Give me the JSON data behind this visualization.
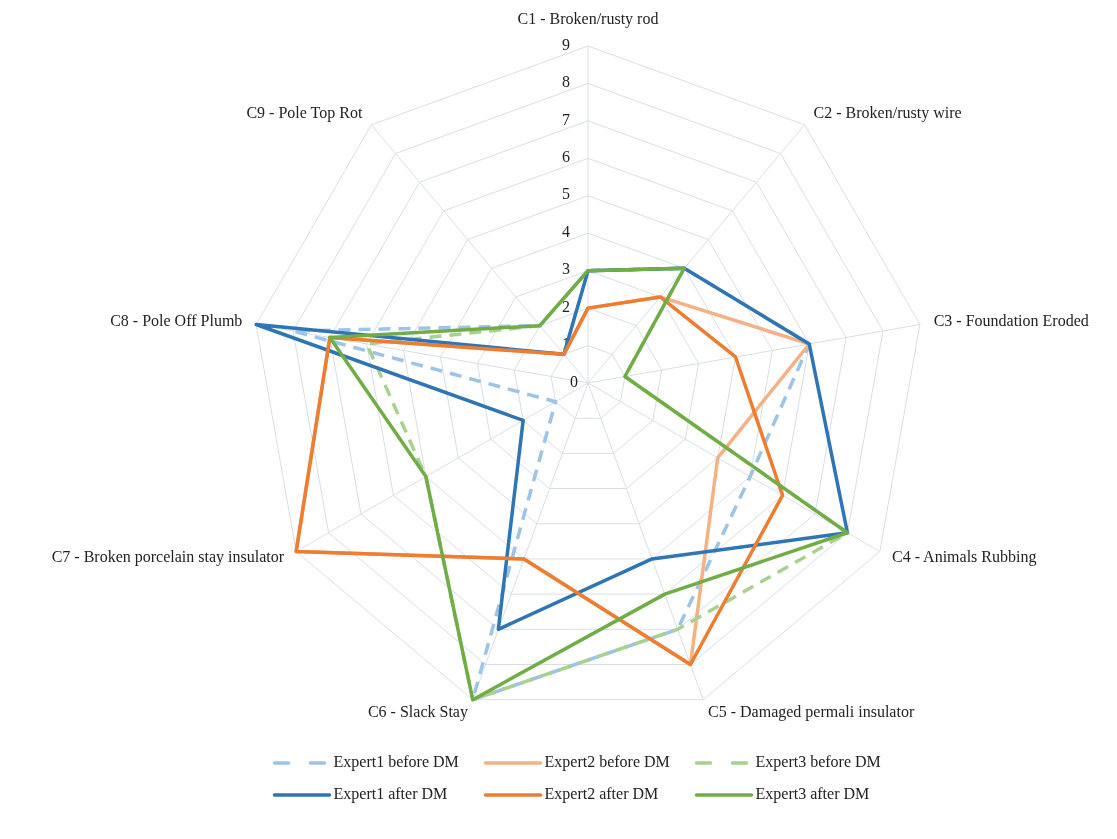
{
  "chart_data": {
    "type": "radar",
    "categories": [
      "C1 - Broken/rusty rod",
      "C2 - Broken/rusty wire",
      "C3 - Foundation Eroded",
      "C4 - Animals Rubbing",
      "C5 - Damaged permali insulator",
      "C6 - Slack Stay",
      "C7 - Broken porcelain stay insulator",
      "C8 - Pole Off Plumb",
      "C9 - Pole Top Rot"
    ],
    "series": [
      {
        "name": "Expert1 before DM",
        "color": "#9dc3e6",
        "line_style": "dashed",
        "values": [
          3,
          4,
          6,
          5,
          7,
          9,
          1,
          8,
          2
        ]
      },
      {
        "name": "Expert2 before DM",
        "color": "#f4b183",
        "line_style": "solid",
        "values": [
          2,
          3,
          6,
          4,
          8,
          5,
          9,
          7,
          1
        ]
      },
      {
        "name": "Expert3 before DM",
        "color": "#a9d18e",
        "line_style": "dashed",
        "values": [
          3,
          4,
          1,
          8,
          7,
          9,
          5,
          6,
          2
        ]
      },
      {
        "name": "Expert1 after DM",
        "color": "#2e75b6",
        "line_style": "solid",
        "values": [
          3,
          4,
          6,
          8,
          5,
          7,
          2,
          9,
          1
        ]
      },
      {
        "name": "Expert2 after DM",
        "color": "#ed7d31",
        "line_style": "solid",
        "values": [
          2,
          3,
          4,
          6,
          8,
          5,
          9,
          7,
          1
        ]
      },
      {
        "name": "Expert3 after DM",
        "color": "#70ad47",
        "line_style": "solid",
        "values": [
          3,
          4,
          1,
          8,
          6,
          9,
          5,
          7,
          2
        ]
      }
    ],
    "ylim": [
      0,
      9
    ],
    "yticks": [
      0,
      1,
      2,
      3,
      4,
      5,
      6,
      7,
      8,
      9
    ],
    "grid": true,
    "legend": "bottom"
  }
}
